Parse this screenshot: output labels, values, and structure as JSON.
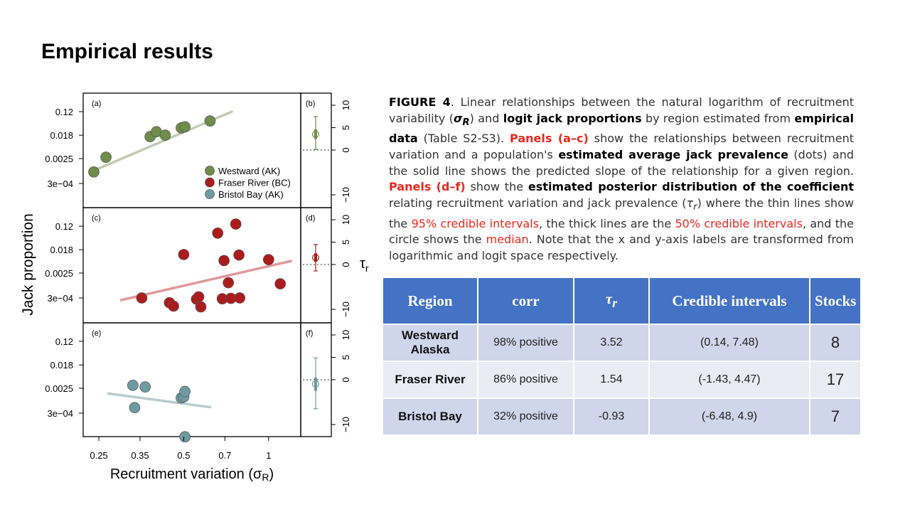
{
  "slide": {
    "title": "Empirical results"
  },
  "caption": {
    "p1": "FIGURE 4",
    "p2": ". Linear relationships between the natural logarithm of recruitment variability (",
    "p3": "σ",
    "p4": "R",
    "p5": ") and ",
    "p6": "logit jack proportions",
    "p7": " by region estimated from ",
    "p8": "empirical data",
    "p9": " (Table S2-S3). ",
    "p10": "Panels (a–c)",
    "p11": " show the relationships between recruitment variation and a population's ",
    "p12": "estimated average jack prevalence",
    "p13": " (dots) and the solid line shows the predicted slope of the relationship for a given region. ",
    "p14": "Panels (d–f)",
    "p15": " show the ",
    "p16": "estimated posterior distribution of the coefficient",
    "p17": " relating recruitment variation and jack prevalence (",
    "p18": "τ",
    "p19": "r",
    "p20": ") where the thin lines show the ",
    "p21": "95% credible intervals",
    "p22": ", the thick lines are the ",
    "p23": "50% credible intervals",
    "p24": ", and the circle shows the ",
    "p25": "median",
    "p26": ". Note that the x and y-axis labels are transformed from logarithmic and logit space respectively."
  },
  "table": {
    "headers": {
      "region": "Region",
      "corr": "corr",
      "tau": "τ",
      "tau_sub": "r",
      "ci": "Credible intervals",
      "stocks": "Stocks"
    },
    "rows": [
      {
        "region": "Westward Alaska",
        "corr": "98% positive",
        "tau": "3.52",
        "ci": "(0.14, 7.48)",
        "stocks": "8"
      },
      {
        "region": "Fraser River",
        "corr": "86% positive",
        "tau": "1.54",
        "ci": "(-1.43, 4.47)",
        "stocks": "17"
      },
      {
        "region": "Bristol Bay",
        "corr": "32% positive",
        "tau": "-0.93",
        "ci": "(-6.48, 4.9)",
        "stocks": "7"
      }
    ]
  },
  "chart_data": {
    "type": "scatter",
    "xlabel": "Recruitment variation (σR)",
    "ylabel": "Jack proportion",
    "right_axis_label": "τr",
    "x_ticks": [
      "0.25",
      "0.35",
      "0.5",
      "0.7",
      "1"
    ],
    "y_ticks": [
      "0.12",
      "0.018",
      "0.0025",
      "3e−04"
    ],
    "tau_ticks": [
      "10",
      "5",
      "0",
      "−10"
    ],
    "xlim": [
      0.22,
      1.3
    ],
    "legend_position": "bottom-right of panel (a)",
    "colors": {
      "Westward (AK)": "#6f8c4a",
      "Fraser River (BC)": "#ab1d1d",
      "Bristol Bay (AK)": "#6e9aa2"
    },
    "line_colors": {
      "Westward (AK)": "#c3cbb2",
      "Fraser River (BC)": "#e0999c",
      "Bristol Bay (AK)": "#b8cccf"
    },
    "panels": [
      {
        "label": "(a)",
        "tau_label": "(b)",
        "series": "Westward (AK)",
        "points": [
          {
            "x": 0.24,
            "y": 0.0008
          },
          {
            "x": 0.265,
            "y": 0.0028
          },
          {
            "x": 0.38,
            "y": 0.016
          },
          {
            "x": 0.4,
            "y": 0.024
          },
          {
            "x": 0.43,
            "y": 0.018
          },
          {
            "x": 0.49,
            "y": 0.033
          },
          {
            "x": 0.505,
            "y": 0.036
          },
          {
            "x": 0.62,
            "y": 0.058
          }
        ],
        "fit": {
          "x": [
            0.24,
            0.74
          ],
          "y": [
            0.0009,
            0.12
          ]
        },
        "tau": {
          "median": 3.52,
          "ci95": [
            0.14,
            7.48
          ],
          "ci50": [
            2.5,
            4.6
          ]
        }
      },
      {
        "label": "(c)",
        "tau_label": "(d)",
        "series": "Fraser River (BC)",
        "points": [
          {
            "x": 0.355,
            "y": 0.0003
          },
          {
            "x": 0.445,
            "y": 0.0002
          },
          {
            "x": 0.46,
            "y": 0.00015
          },
          {
            "x": 0.5,
            "y": 0.012
          },
          {
            "x": 0.555,
            "y": 0.00027
          },
          {
            "x": 0.565,
            "y": 0.00033
          },
          {
            "x": 0.575,
            "y": 0.00014
          },
          {
            "x": 0.66,
            "y": 0.07
          },
          {
            "x": 0.685,
            "y": 0.00028
          },
          {
            "x": 0.695,
            "y": 0.0072
          },
          {
            "x": 0.72,
            "y": 0.0011
          },
          {
            "x": 0.735,
            "y": 0.00029
          },
          {
            "x": 0.765,
            "y": 0.14
          },
          {
            "x": 0.785,
            "y": 0.0115
          },
          {
            "x": 0.79,
            "y": 0.0003
          },
          {
            "x": 1.0,
            "y": 0.0078
          },
          {
            "x": 1.1,
            "y": 0.001
          }
        ],
        "fit": {
          "x": [
            0.3,
            1.2
          ],
          "y": [
            0.00025,
            0.0069
          ]
        },
        "tau": {
          "median": 1.54,
          "ci95": [
            -1.43,
            4.47
          ],
          "ci50": [
            0.6,
            2.5
          ]
        }
      },
      {
        "label": "(e)",
        "tau_label": "(f)",
        "series": "Bristol Bay (AK)",
        "points": [
          {
            "x": 0.33,
            "y": 0.0032
          },
          {
            "x": 0.335,
            "y": 0.00048
          },
          {
            "x": 0.365,
            "y": 0.0028
          },
          {
            "x": 0.49,
            "y": 0.0011
          },
          {
            "x": 0.5,
            "y": 0.0012
          },
          {
            "x": 0.505,
            "y": 0.0019
          },
          {
            "x": 0.505,
            "y": 4e-05
          }
        ],
        "fit": {
          "x": [
            0.27,
            0.62
          ],
          "y": [
            0.0016,
            0.0005
          ]
        },
        "tau": {
          "median": -0.93,
          "ci95": [
            -6.48,
            4.9
          ],
          "ci50": [
            -2.5,
            0.5
          ]
        }
      }
    ]
  }
}
